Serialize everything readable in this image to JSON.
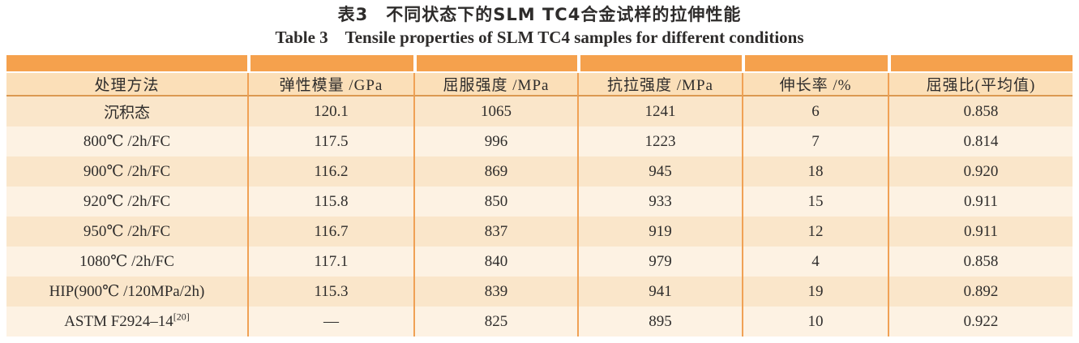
{
  "titles": {
    "zh": "表3　不同状态下的SLM TC4合金试样的拉伸性能",
    "en": "Table 3　Tensile properties of SLM TC4 samples for different conditions"
  },
  "table": {
    "columns": [
      "处理方法",
      "弹性模量 /GPa",
      "屈服强度 /MPa",
      "抗拉强度 /MPa",
      "伸长率 /%",
      "屈强比(平均值)"
    ],
    "rows": [
      {
        "method": "沉积态",
        "modulus": "120.1",
        "yield_strength": "1065",
        "tensile_strength": "1241",
        "elongation": "6",
        "yield_ratio": "0.858"
      },
      {
        "method": "800℃ /2h/FC",
        "modulus": "117.5",
        "yield_strength": "996",
        "tensile_strength": "1223",
        "elongation": "7",
        "yield_ratio": "0.814"
      },
      {
        "method": "900℃ /2h/FC",
        "modulus": "116.2",
        "yield_strength": "869",
        "tensile_strength": "945",
        "elongation": "18",
        "yield_ratio": "0.920"
      },
      {
        "method": "920℃ /2h/FC",
        "modulus": "115.8",
        "yield_strength": "850",
        "tensile_strength": "933",
        "elongation": "15",
        "yield_ratio": "0.911"
      },
      {
        "method": "950℃ /2h/FC",
        "modulus": "116.7",
        "yield_strength": "837",
        "tensile_strength": "919",
        "elongation": "12",
        "yield_ratio": "0.911"
      },
      {
        "method": "1080℃ /2h/FC",
        "modulus": "117.1",
        "yield_strength": "840",
        "tensile_strength": "979",
        "elongation": "4",
        "yield_ratio": "0.858"
      },
      {
        "method": "HIP(900℃ /120MPa/2h)",
        "modulus": "115.3",
        "yield_strength": "839",
        "tensile_strength": "941",
        "elongation": "19",
        "yield_ratio": "0.892"
      },
      {
        "method": "ASTM F2924–14",
        "method_superscript": "[20]",
        "modulus": "—",
        "yield_strength": "825",
        "tensile_strength": "895",
        "elongation": "10",
        "yield_ratio": "0.922"
      }
    ]
  },
  "colors": {
    "band_orange": "#f5a14d",
    "header_bg": "#fbdfb8",
    "row_odd_bg": "#fae6ca",
    "row_even_bg": "#fdf2e3",
    "column_divider": "#f0a155",
    "header_underline": "#db9951",
    "band_divider": "#ffffff",
    "text": "#2e2c2b"
  }
}
